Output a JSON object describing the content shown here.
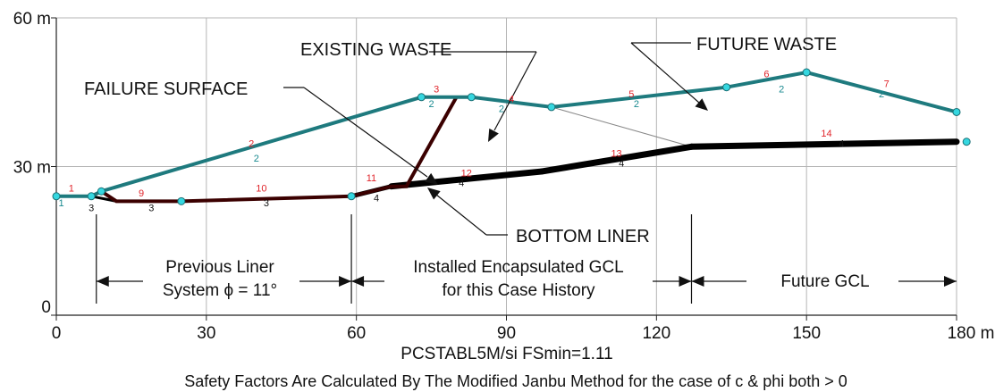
{
  "chart_data": {
    "type": "diagram",
    "x_axis": {
      "ticks": [
        "0",
        "30",
        "60",
        "90",
        "120",
        "150",
        "180 m"
      ],
      "tick_values": [
        0,
        30,
        60,
        90,
        120,
        150,
        180
      ],
      "range": [
        0,
        180
      ]
    },
    "y_axis": {
      "ticks": [
        "0",
        "30 m",
        "60 m"
      ],
      "tick_values": [
        0,
        30,
        60
      ],
      "range": [
        0,
        60
      ]
    },
    "grid": true,
    "slope_surface": [
      [
        0,
        24
      ],
      [
        7,
        24
      ],
      [
        9,
        25
      ],
      [
        73,
        44
      ],
      [
        83,
        44
      ],
      [
        99,
        42
      ],
      [
        134,
        46
      ],
      [
        150,
        49
      ],
      [
        180,
        41
      ]
    ],
    "existing_waste_surface": [
      [
        73,
        44
      ],
      [
        80,
        44
      ]
    ],
    "bottom_liner": [
      [
        7,
        24
      ],
      [
        12,
        23
      ],
      [
        25,
        23
      ],
      [
        59,
        24
      ],
      [
        67,
        26
      ],
      [
        97,
        29
      ],
      [
        127,
        34
      ],
      [
        180,
        35
      ]
    ],
    "failure_surface": [
      [
        9,
        25
      ],
      [
        12,
        23
      ],
      [
        25,
        23
      ],
      [
        59,
        24
      ],
      [
        67,
        26
      ],
      [
        70,
        26
      ],
      [
        80,
        44
      ]
    ],
    "points_cyan": [
      [
        0,
        24
      ],
      [
        7,
        24
      ],
      [
        9,
        25
      ],
      [
        25,
        23
      ],
      [
        59,
        24
      ],
      [
        73,
        44
      ],
      [
        83,
        44
      ],
      [
        99,
        42
      ],
      [
        134,
        46
      ],
      [
        150,
        49
      ],
      [
        180,
        41
      ],
      [
        182,
        35
      ]
    ],
    "segment_numbers": [
      {
        "label": "1",
        "x": 3,
        "y": 25,
        "color": "red"
      },
      {
        "label": "2",
        "x": 39,
        "y": 34,
        "color": "red"
      },
      {
        "label": "3",
        "x": 76,
        "y": 45,
        "color": "red"
      },
      {
        "label": "4",
        "x": 91,
        "y": 43,
        "color": "red"
      },
      {
        "label": "5",
        "x": 115,
        "y": 44,
        "color": "red"
      },
      {
        "label": "6",
        "x": 142,
        "y": 48,
        "color": "red"
      },
      {
        "label": "7",
        "x": 166,
        "y": 46,
        "color": "red"
      },
      {
        "label": "9",
        "x": 17,
        "y": 24,
        "color": "red"
      },
      {
        "label": "10",
        "x": 41,
        "y": 25,
        "color": "red"
      },
      {
        "label": "11",
        "x": 63,
        "y": 27,
        "color": "red"
      },
      {
        "label": "12",
        "x": 82,
        "y": 28,
        "color": "red"
      },
      {
        "label": "13",
        "x": 112,
        "y": 32,
        "color": "red"
      },
      {
        "label": "14",
        "x": 154,
        "y": 36,
        "color": "red"
      }
    ],
    "soil_numbers": [
      {
        "label": "1",
        "x": 1,
        "y": 22,
        "color": "teal"
      },
      {
        "label": "2",
        "x": 40,
        "y": 31,
        "color": "teal"
      },
      {
        "label": "2",
        "x": 75,
        "y": 42,
        "color": "teal"
      },
      {
        "label": "2",
        "x": 89,
        "y": 41,
        "color": "teal"
      },
      {
        "label": "2",
        "x": 116,
        "y": 42,
        "color": "teal"
      },
      {
        "label": "2",
        "x": 145,
        "y": 45,
        "color": "teal"
      },
      {
        "label": "2",
        "x": 165,
        "y": 44,
        "color": "teal"
      },
      {
        "label": "3",
        "x": 7,
        "y": 21,
        "color": "black"
      },
      {
        "label": "3",
        "x": 19,
        "y": 21,
        "color": "black"
      },
      {
        "label": "3",
        "x": 42,
        "y": 22,
        "color": "black"
      },
      {
        "label": "4",
        "x": 64,
        "y": 23,
        "color": "black"
      },
      {
        "label": "4",
        "x": 81,
        "y": 26,
        "color": "black"
      },
      {
        "label": "4",
        "x": 113,
        "y": 30,
        "color": "black"
      },
      {
        "label": "4",
        "x": 157,
        "y": 34,
        "color": "black"
      }
    ],
    "annotations": {
      "existing_waste": "EXISTING WASTE",
      "future_waste": "FUTURE WASTE",
      "failure_surface": "FAILURE SURFACE",
      "bottom_liner": "BOTTOM LINER",
      "previous_liner_1": "Previous Liner",
      "previous_liner_2": "System ϕ = 11°",
      "installed_gcl_1": "Installed Encapsulated GCL",
      "installed_gcl_2": "for this Case History",
      "future_gcl": "Future GCL"
    },
    "subtitle": "PCSTABL5M/si   FSmin=1.11",
    "footnote": "Safety Factors Are Calculated By The Modified Janbu Method for the case of c & phi both > 0",
    "colors": {
      "surface": "#1e7a7e",
      "liner": "#000000",
      "failure": "#3b0000",
      "node": "#35d7e0",
      "label_red": "#e0242a",
      "label_teal": "#1a8a90"
    }
  }
}
